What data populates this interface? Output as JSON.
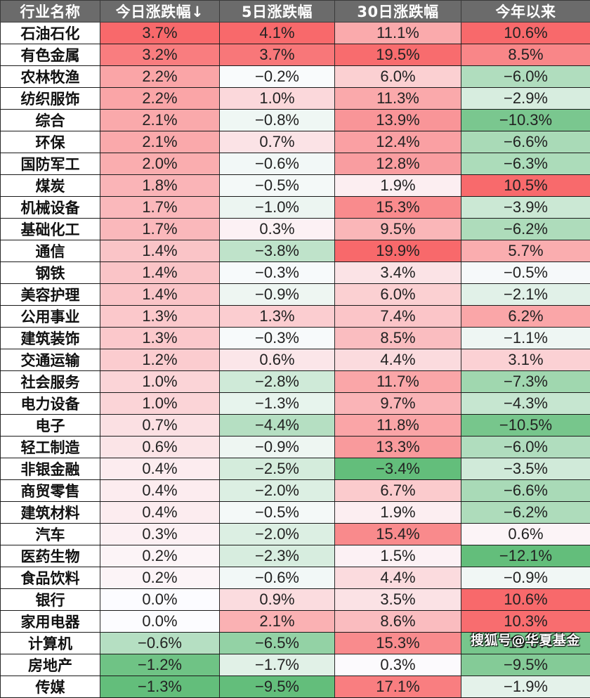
{
  "chart_data": {
    "type": "heatmap",
    "title": "",
    "columns": [
      "行业名称",
      "今日涨跌幅↓",
      "5日涨跌幅",
      "30日涨跌幅",
      "今年以来"
    ],
    "sort": {
      "column": "今日涨跌幅",
      "order": "descending"
    },
    "color_scale": {
      "positive": "#f8696b",
      "zero": "#fcfcff",
      "negative": "#63be7b"
    },
    "rows": [
      {
        "industry": "石油石化",
        "today": "3.7%",
        "d5": "4.1%",
        "d30": "11.1%",
        "ytd": "10.6%"
      },
      {
        "industry": "有色金属",
        "today": "3.2%",
        "d5": "3.7%",
        "d30": "19.5%",
        "ytd": "8.5%"
      },
      {
        "industry": "农林牧渔",
        "today": "2.2%",
        "d5": "−0.2%",
        "d30": "6.0%",
        "ytd": "−6.0%"
      },
      {
        "industry": "纺织服饰",
        "today": "2.2%",
        "d5": "1.0%",
        "d30": "11.3%",
        "ytd": "−2.9%"
      },
      {
        "industry": "综合",
        "today": "2.1%",
        "d5": "−0.8%",
        "d30": "13.9%",
        "ytd": "−10.3%"
      },
      {
        "industry": "环保",
        "today": "2.1%",
        "d5": "0.7%",
        "d30": "12.4%",
        "ytd": "−6.6%"
      },
      {
        "industry": "国防军工",
        "today": "2.0%",
        "d5": "−0.6%",
        "d30": "12.8%",
        "ytd": "−6.3%"
      },
      {
        "industry": "煤炭",
        "today": "1.8%",
        "d5": "−0.5%",
        "d30": "1.9%",
        "ytd": "10.5%"
      },
      {
        "industry": "机械设备",
        "today": "1.7%",
        "d5": "−1.0%",
        "d30": "15.3%",
        "ytd": "−3.9%"
      },
      {
        "industry": "基础化工",
        "today": "1.7%",
        "d5": "0.3%",
        "d30": "9.5%",
        "ytd": "−6.2%"
      },
      {
        "industry": "通信",
        "today": "1.4%",
        "d5": "−3.8%",
        "d30": "19.9%",
        "ytd": "5.7%"
      },
      {
        "industry": "钢铁",
        "today": "1.4%",
        "d5": "−0.3%",
        "d30": "3.4%",
        "ytd": "−0.5%"
      },
      {
        "industry": "美容护理",
        "today": "1.4%",
        "d5": "−0.9%",
        "d30": "6.0%",
        "ytd": "−2.1%"
      },
      {
        "industry": "公用事业",
        "today": "1.3%",
        "d5": "1.3%",
        "d30": "7.4%",
        "ytd": "6.2%"
      },
      {
        "industry": "建筑装饰",
        "today": "1.3%",
        "d5": "−0.3%",
        "d30": "8.5%",
        "ytd": "−1.1%"
      },
      {
        "industry": "交通运输",
        "today": "1.2%",
        "d5": "0.6%",
        "d30": "4.4%",
        "ytd": "3.1%"
      },
      {
        "industry": "社会服务",
        "today": "1.0%",
        "d5": "−2.8%",
        "d30": "11.7%",
        "ytd": "−7.3%"
      },
      {
        "industry": "电力设备",
        "today": "1.0%",
        "d5": "−1.3%",
        "d30": "9.7%",
        "ytd": "−4.3%"
      },
      {
        "industry": "电子",
        "today": "0.7%",
        "d5": "−4.4%",
        "d30": "11.8%",
        "ytd": "−10.5%"
      },
      {
        "industry": "轻工制造",
        "today": "0.6%",
        "d5": "−0.9%",
        "d30": "13.3%",
        "ytd": "−6.0%"
      },
      {
        "industry": "非银金融",
        "today": "0.4%",
        "d5": "−2.5%",
        "d30": "−3.4%",
        "ytd": "−3.5%"
      },
      {
        "industry": "商贸零售",
        "today": "0.4%",
        "d5": "−2.0%",
        "d30": "6.7%",
        "ytd": "−6.6%"
      },
      {
        "industry": "建筑材料",
        "today": "0.4%",
        "d5": "−0.5%",
        "d30": "1.9%",
        "ytd": "−6.2%"
      },
      {
        "industry": "汽车",
        "today": "0.3%",
        "d5": "−2.0%",
        "d30": "15.4%",
        "ytd": "0.6%"
      },
      {
        "industry": "医药生物",
        "today": "0.2%",
        "d5": "−2.3%",
        "d30": "1.5%",
        "ytd": "−12.1%"
      },
      {
        "industry": "食品饮料",
        "today": "0.2%",
        "d5": "−0.6%",
        "d30": "4.4%",
        "ytd": "−0.9%"
      },
      {
        "industry": "银行",
        "today": "0.0%",
        "d5": "0.9%",
        "d30": "3.5%",
        "ytd": "10.6%"
      },
      {
        "industry": "家用电器",
        "today": "0.0%",
        "d5": "2.1%",
        "d30": "8.6%",
        "ytd": "10.3%"
      },
      {
        "industry": "计算机",
        "today": "−0.6%",
        "d5": "−6.5%",
        "d30": "15.3%",
        "ytd": "−10.5%"
      },
      {
        "industry": "房地产",
        "today": "−1.2%",
        "d5": "−1.7%",
        "d30": "0.3%",
        "ytd": "−9.5%"
      },
      {
        "industry": "传媒",
        "today": "−1.3%",
        "d5": "−9.5%",
        "d30": "17.1%",
        "ytd": "−1.9%"
      }
    ]
  },
  "header": {
    "industry": "行业名称",
    "today": "今日涨跌幅↓",
    "d5": "5日涨跌幅",
    "d30": "30日涨跌幅",
    "ytd": "今年以来"
  },
  "watermark": "搜狐号@华夏基金"
}
